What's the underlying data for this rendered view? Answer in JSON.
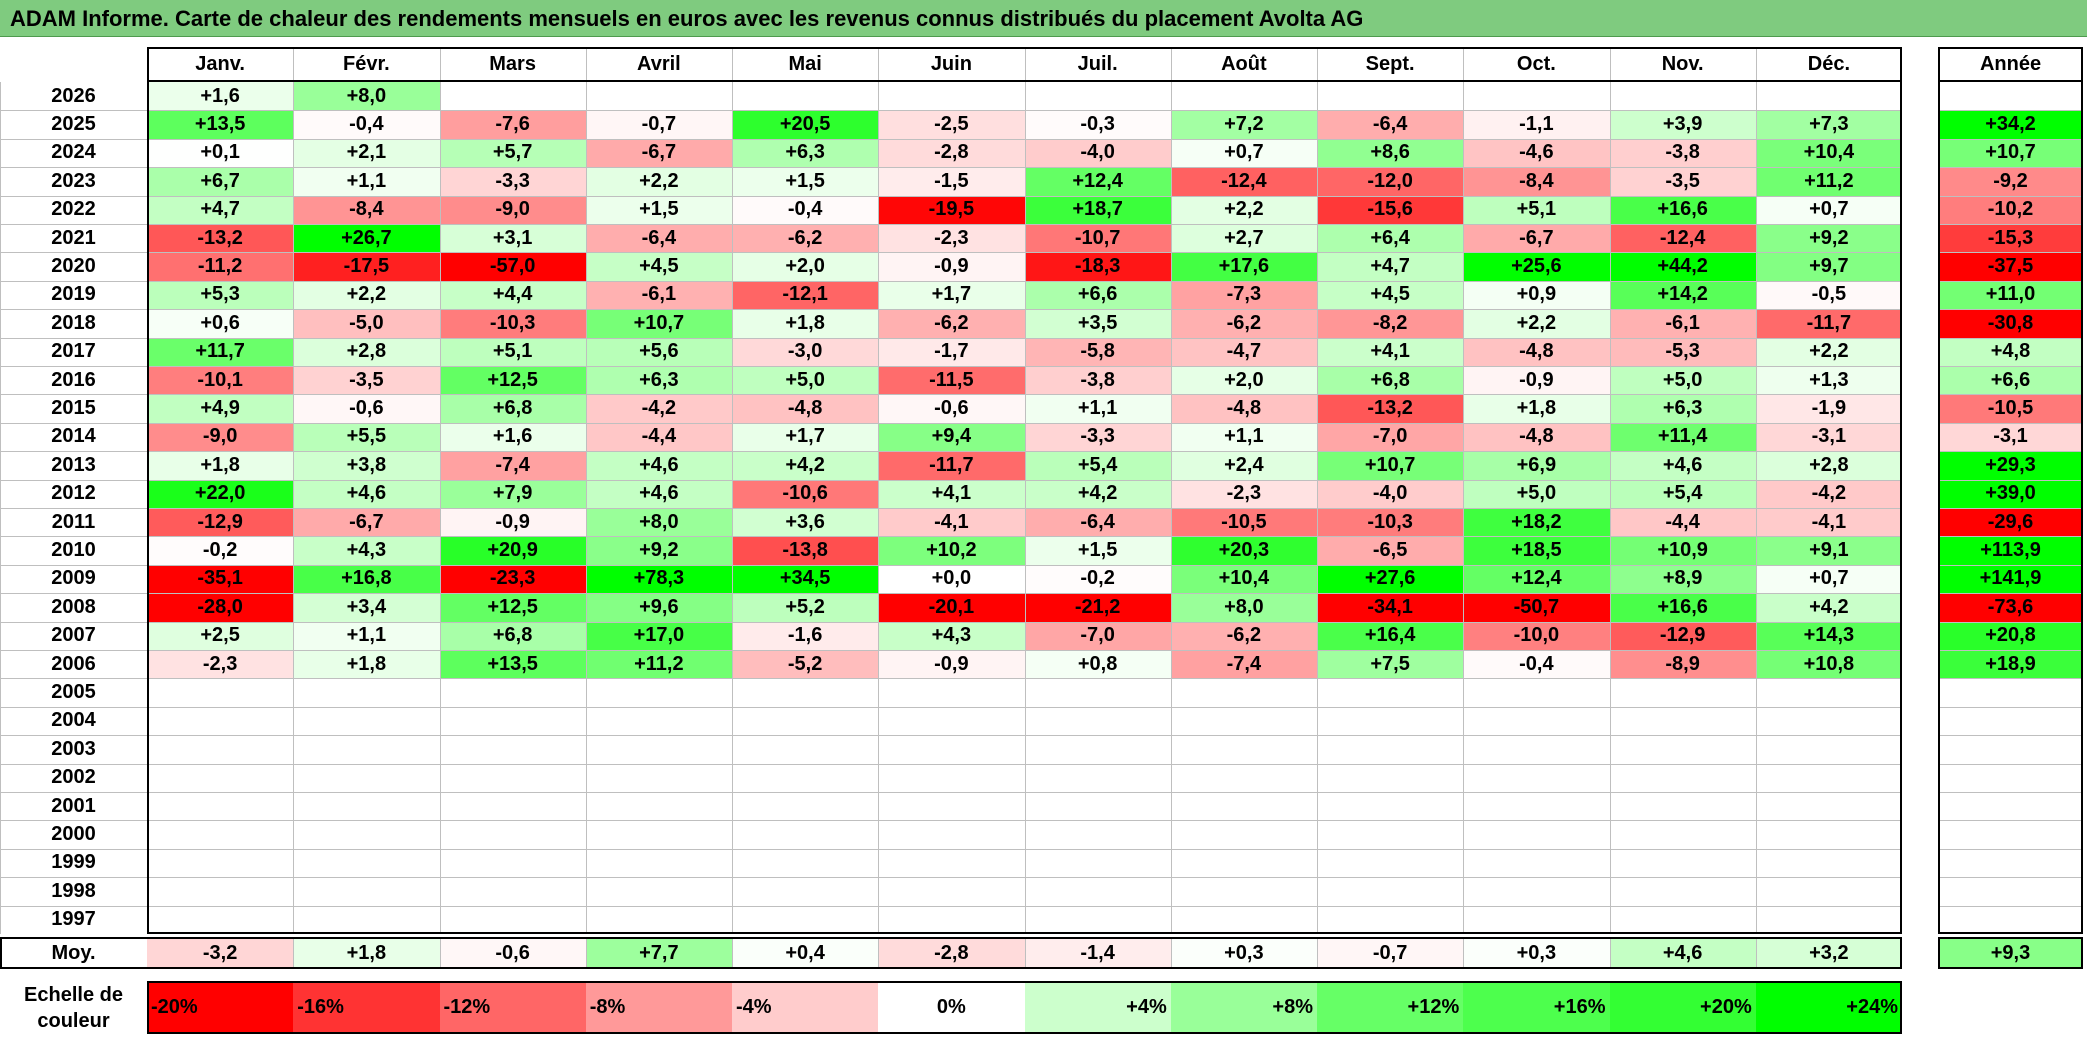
{
  "title": "ADAM Informe. Carte de chaleur des rendements mensuels en euros avec les revenus connus distribués du placement Avolta AG",
  "chart_data": {
    "type": "heatmap",
    "months": [
      "Janv.",
      "Févr.",
      "Mars",
      "Avril",
      "Mai",
      "Juin",
      "Juil.",
      "Août",
      "Sept.",
      "Oct.",
      "Nov.",
      "Déc."
    ],
    "annual_label": "Année",
    "average_label": "Moy.",
    "rows": [
      {
        "year": "2026",
        "months": [
          "+1,6",
          "+8,0",
          "",
          "",
          "",
          "",
          "",
          "",
          "",
          "",
          "",
          ""
        ],
        "annual": ""
      },
      {
        "year": "2025",
        "months": [
          "+13,5",
          "-0,4",
          "-7,6",
          "-0,7",
          "+20,5",
          "-2,5",
          "-0,3",
          "+7,2",
          "-6,4",
          "-1,1",
          "+3,9",
          "+7,3"
        ],
        "annual": "+34,2"
      },
      {
        "year": "2024",
        "months": [
          "+0,1",
          "+2,1",
          "+5,7",
          "-6,7",
          "+6,3",
          "-2,8",
          "-4,0",
          "+0,7",
          "+8,6",
          "-4,6",
          "-3,8",
          "+10,4"
        ],
        "annual": "+10,7"
      },
      {
        "year": "2023",
        "months": [
          "+6,7",
          "+1,1",
          "-3,3",
          "+2,2",
          "+1,5",
          "-1,5",
          "+12,4",
          "-12,4",
          "-12,0",
          "-8,4",
          "-3,5",
          "+11,2"
        ],
        "annual": "-9,2"
      },
      {
        "year": "2022",
        "months": [
          "+4,7",
          "-8,4",
          "-9,0",
          "+1,5",
          "-0,4",
          "-19,5",
          "+18,7",
          "+2,2",
          "-15,6",
          "+5,1",
          "+16,6",
          "+0,7"
        ],
        "annual": "-10,2"
      },
      {
        "year": "2021",
        "months": [
          "-13,2",
          "+26,7",
          "+3,1",
          "-6,4",
          "-6,2",
          "-2,3",
          "-10,7",
          "+2,7",
          "+6,4",
          "-6,7",
          "-12,4",
          "+9,2"
        ],
        "annual": "-15,3"
      },
      {
        "year": "2020",
        "months": [
          "-11,2",
          "-17,5",
          "-57,0",
          "+4,5",
          "+2,0",
          "-0,9",
          "-18,3",
          "+17,6",
          "+4,7",
          "+25,6",
          "+44,2",
          "+9,7"
        ],
        "annual": "-37,5"
      },
      {
        "year": "2019",
        "months": [
          "+5,3",
          "+2,2",
          "+4,4",
          "-6,1",
          "-12,1",
          "+1,7",
          "+6,6",
          "-7,3",
          "+4,5",
          "+0,9",
          "+14,2",
          "-0,5"
        ],
        "annual": "+11,0"
      },
      {
        "year": "2018",
        "months": [
          "+0,6",
          "-5,0",
          "-10,3",
          "+10,7",
          "+1,8",
          "-6,2",
          "+3,5",
          "-6,2",
          "-8,2",
          "+2,2",
          "-6,1",
          "-11,7"
        ],
        "annual": "-30,8"
      },
      {
        "year": "2017",
        "months": [
          "+11,7",
          "+2,8",
          "+5,1",
          "+5,6",
          "-3,0",
          "-1,7",
          "-5,8",
          "-4,7",
          "+4,1",
          "-4,8",
          "-5,3",
          "+2,2"
        ],
        "annual": "+4,8"
      },
      {
        "year": "2016",
        "months": [
          "-10,1",
          "-3,5",
          "+12,5",
          "+6,3",
          "+5,0",
          "-11,5",
          "-3,8",
          "+2,0",
          "+6,8",
          "-0,9",
          "+5,0",
          "+1,3"
        ],
        "annual": "+6,6"
      },
      {
        "year": "2015",
        "months": [
          "+4,9",
          "-0,6",
          "+6,8",
          "-4,2",
          "-4,8",
          "-0,6",
          "+1,1",
          "-4,8",
          "-13,2",
          "+1,8",
          "+6,3",
          "-1,9"
        ],
        "annual": "-10,5"
      },
      {
        "year": "2014",
        "months": [
          "-9,0",
          "+5,5",
          "+1,6",
          "-4,4",
          "+1,7",
          "+9,4",
          "-3,3",
          "+1,1",
          "-7,0",
          "-4,8",
          "+11,4",
          "-3,1"
        ],
        "annual": "-3,1"
      },
      {
        "year": "2013",
        "months": [
          "+1,8",
          "+3,8",
          "-7,4",
          "+4,6",
          "+4,2",
          "-11,7",
          "+5,4",
          "+2,4",
          "+10,7",
          "+6,9",
          "+4,6",
          "+2,8"
        ],
        "annual": "+29,3"
      },
      {
        "year": "2012",
        "months": [
          "+22,0",
          "+4,6",
          "+7,9",
          "+4,6",
          "-10,6",
          "+4,1",
          "+4,2",
          "-2,3",
          "-4,0",
          "+5,0",
          "+5,4",
          "-4,2"
        ],
        "annual": "+39,0"
      },
      {
        "year": "2011",
        "months": [
          "-12,9",
          "-6,7",
          "-0,9",
          "+8,0",
          "+3,6",
          "-4,1",
          "-6,4",
          "-10,5",
          "-10,3",
          "+18,2",
          "-4,4",
          "-4,1"
        ],
        "annual": "-29,6"
      },
      {
        "year": "2010",
        "months": [
          "-0,2",
          "+4,3",
          "+20,9",
          "+9,2",
          "-13,8",
          "+10,2",
          "+1,5",
          "+20,3",
          "-6,5",
          "+18,5",
          "+10,9",
          "+9,1"
        ],
        "annual": "+113,9"
      },
      {
        "year": "2009",
        "months": [
          "-35,1",
          "+16,8",
          "-23,3",
          "+78,3",
          "+34,5",
          "+0,0",
          "-0,2",
          "+10,4",
          "+27,6",
          "+12,4",
          "+8,9",
          "+0,7"
        ],
        "annual": "+141,9"
      },
      {
        "year": "2008",
        "months": [
          "-28,0",
          "+3,4",
          "+12,5",
          "+9,6",
          "+5,2",
          "-20,1",
          "-21,2",
          "+8,0",
          "-34,1",
          "-50,7",
          "+16,6",
          "+4,2"
        ],
        "annual": "-73,6"
      },
      {
        "year": "2007",
        "months": [
          "+2,5",
          "+1,1",
          "+6,8",
          "+17,0",
          "-1,6",
          "+4,3",
          "-7,0",
          "-6,2",
          "+16,4",
          "-10,0",
          "-12,9",
          "+14,3"
        ],
        "annual": "+20,8"
      },
      {
        "year": "2006",
        "months": [
          "-2,3",
          "+1,8",
          "+13,5",
          "+11,2",
          "-5,2",
          "-0,9",
          "+0,8",
          "-7,4",
          "+7,5",
          "-0,4",
          "-8,9",
          "+10,8"
        ],
        "annual": "+18,9"
      },
      {
        "year": "2005",
        "months": [
          "",
          "",
          "",
          "",
          "",
          "",
          "",
          "",
          "",
          "",
          "",
          ""
        ],
        "annual": ""
      },
      {
        "year": "2004",
        "months": [
          "",
          "",
          "",
          "",
          "",
          "",
          "",
          "",
          "",
          "",
          "",
          ""
        ],
        "annual": ""
      },
      {
        "year": "2003",
        "months": [
          "",
          "",
          "",
          "",
          "",
          "",
          "",
          "",
          "",
          "",
          "",
          ""
        ],
        "annual": ""
      },
      {
        "year": "2002",
        "months": [
          "",
          "",
          "",
          "",
          "",
          "",
          "",
          "",
          "",
          "",
          "",
          ""
        ],
        "annual": ""
      },
      {
        "year": "2001",
        "months": [
          "",
          "",
          "",
          "",
          "",
          "",
          "",
          "",
          "",
          "",
          "",
          ""
        ],
        "annual": ""
      },
      {
        "year": "2000",
        "months": [
          "",
          "",
          "",
          "",
          "",
          "",
          "",
          "",
          "",
          "",
          "",
          ""
        ],
        "annual": ""
      },
      {
        "year": "1999",
        "months": [
          "",
          "",
          "",
          "",
          "",
          "",
          "",
          "",
          "",
          "",
          "",
          ""
        ],
        "annual": ""
      },
      {
        "year": "1998",
        "months": [
          "",
          "",
          "",
          "",
          "",
          "",
          "",
          "",
          "",
          "",
          "",
          ""
        ],
        "annual": ""
      },
      {
        "year": "1997",
        "months": [
          "",
          "",
          "",
          "",
          "",
          "",
          "",
          "",
          "",
          "",
          "",
          ""
        ],
        "annual": ""
      }
    ],
    "average": {
      "months": [
        "-3,2",
        "+1,8",
        "-0,6",
        "+7,7",
        "+0,4",
        "-2,8",
        "-1,4",
        "+0,3",
        "-0,7",
        "+0,3",
        "+4,6",
        "+3,2"
      ],
      "annual": "+9,3"
    },
    "color_scale": {
      "label_line1": "Echelle de",
      "label_line2": "couleur",
      "steps": [
        {
          "label": "-20%",
          "value": -20,
          "color": "#ff0000"
        },
        {
          "label": "-16%",
          "value": -16,
          "color": "#ff3333"
        },
        {
          "label": "-12%",
          "value": -12,
          "color": "#ff6666"
        },
        {
          "label": "-8%",
          "value": -8,
          "color": "#ff9999"
        },
        {
          "label": "-4%",
          "value": -4,
          "color": "#ffcccc"
        },
        {
          "label": "0%",
          "value": 0,
          "color": "#ffffff"
        },
        {
          "label": "+4%",
          "value": 4,
          "color": "#ccffcc"
        },
        {
          "label": "+8%",
          "value": 8,
          "color": "#99ff99"
        },
        {
          "label": "+12%",
          "value": 12,
          "color": "#66ff66"
        },
        {
          "label": "+16%",
          "value": 16,
          "color": "#4dff4d"
        },
        {
          "label": "+20%",
          "value": 20,
          "color": "#33ff33"
        },
        {
          "label": "+24%",
          "value": 24,
          "color": "#00ff00"
        }
      ]
    }
  }
}
